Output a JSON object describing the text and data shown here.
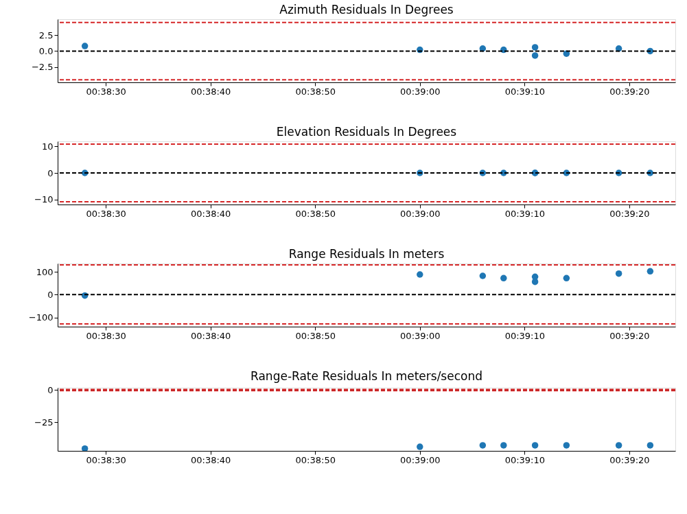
{
  "chart_data": [
    {
      "type": "scatter",
      "title": "Azimuth Residuals In Degrees",
      "x": [
        0.641111,
        0.65,
        0.651667,
        0.652222,
        0.653056,
        0.653056,
        0.653889,
        0.655278,
        0.656111
      ],
      "series": [
        {
          "color": "#1f77b4",
          "values": [
            0.8,
            0.2,
            0.4,
            0.2,
            0.6,
            -0.7,
            -0.4,
            0.4,
            0.0
          ]
        }
      ],
      "xlim": [
        0.640389,
        0.656778
      ],
      "xticks": [
        {
          "value": 0.641667,
          "label": "00:38:30"
        },
        {
          "value": 0.644444,
          "label": "00:38:40"
        },
        {
          "value": 0.647222,
          "label": "00:38:50"
        },
        {
          "value": 0.65,
          "label": "00:39:00"
        },
        {
          "value": 0.652778,
          "label": "00:39:10"
        },
        {
          "value": 0.655556,
          "label": "00:39:20"
        }
      ],
      "ylim": [
        -4.9,
        5.0
      ],
      "yticks": [
        {
          "value": 2.5,
          "label": "2.5"
        },
        {
          "value": 0,
          "label": "0.0"
        },
        {
          "value": -2.5,
          "label": "−2.5"
        }
      ],
      "ref_lines": [
        {
          "axis": "y",
          "value": 0,
          "color": "#000000",
          "line_style": "dashed"
        },
        {
          "axis": "y",
          "value": 4.5,
          "color": "#d62728",
          "line_style": "dashed"
        },
        {
          "axis": "y",
          "value": -4.5,
          "color": "#d62728",
          "line_style": "dashed"
        }
      ],
      "marker": "circle",
      "grid": false
    },
    {
      "type": "scatter",
      "title": "Elevation Residuals In Degrees",
      "x": [
        0.641111,
        0.65,
        0.651667,
        0.652222,
        0.653056,
        0.653056,
        0.653889,
        0.655278,
        0.656111
      ],
      "series": [
        {
          "color": "#1f77b4",
          "values": [
            0,
            0,
            0,
            0,
            0,
            0,
            0,
            0,
            0
          ]
        }
      ],
      "xlim": [
        0.640389,
        0.656778
      ],
      "xticks": [
        {
          "value": 0.641667,
          "label": "00:38:30"
        },
        {
          "value": 0.644444,
          "label": "00:38:40"
        },
        {
          "value": 0.647222,
          "label": "00:38:50"
        },
        {
          "value": 0.65,
          "label": "00:39:00"
        },
        {
          "value": 0.652778,
          "label": "00:39:10"
        },
        {
          "value": 0.655556,
          "label": "00:39:20"
        }
      ],
      "ylim": [
        -11.8,
        11.8
      ],
      "yticks": [
        {
          "value": 10,
          "label": "10"
        },
        {
          "value": 0,
          "label": "0"
        },
        {
          "value": -10,
          "label": "−10"
        }
      ],
      "ref_lines": [
        {
          "axis": "y",
          "value": 0,
          "color": "#000000",
          "line_style": "dashed"
        },
        {
          "axis": "y",
          "value": 10.8,
          "color": "#d62728",
          "line_style": "dashed"
        },
        {
          "axis": "y",
          "value": -10.8,
          "color": "#d62728",
          "line_style": "dashed"
        }
      ],
      "marker": "circle",
      "grid": false
    },
    {
      "type": "scatter",
      "title": "Range Residuals In meters",
      "x": [
        0.641111,
        0.65,
        0.651667,
        0.652222,
        0.653056,
        0.653056,
        0.653889,
        0.655278,
        0.656111
      ],
      "series": [
        {
          "color": "#1f77b4",
          "values": [
            -4,
            88,
            82,
            72,
            78,
            56,
            72,
            92,
            102
          ]
        }
      ],
      "xlim": [
        0.640389,
        0.656778
      ],
      "xticks": [
        {
          "value": 0.641667,
          "label": "00:38:30"
        },
        {
          "value": 0.644444,
          "label": "00:38:40"
        },
        {
          "value": 0.647222,
          "label": "00:38:50"
        },
        {
          "value": 0.65,
          "label": "00:39:00"
        },
        {
          "value": 0.652778,
          "label": "00:39:10"
        },
        {
          "value": 0.655556,
          "label": "00:39:20"
        }
      ],
      "ylim": [
        -140,
        136
      ],
      "yticks": [
        {
          "value": 100,
          "label": "100"
        },
        {
          "value": 0,
          "label": "0"
        },
        {
          "value": -100,
          "label": "−100"
        }
      ],
      "ref_lines": [
        {
          "axis": "y",
          "value": 0,
          "color": "#000000",
          "line_style": "dashed"
        },
        {
          "axis": "y",
          "value": 130,
          "color": "#d62728",
          "line_style": "dashed"
        },
        {
          "axis": "y",
          "value": -128,
          "color": "#d62728",
          "line_style": "dashed"
        }
      ],
      "marker": "circle",
      "grid": false
    },
    {
      "type": "scatter",
      "title": "Range-Rate Residuals In meters/second",
      "x": [
        0.641111,
        0.65,
        0.651667,
        0.652222,
        0.653056,
        0.653889,
        0.655278,
        0.656111
      ],
      "series": [
        {
          "color": "#1f77b4",
          "values": [
            -45.7,
            -44.3,
            -43.2,
            -43.2,
            -43.2,
            -43.2,
            -43.2,
            -43.2
          ]
        }
      ],
      "xlim": [
        0.640389,
        0.656778
      ],
      "xticks": [
        {
          "value": 0.641667,
          "label": "00:38:30"
        },
        {
          "value": 0.644444,
          "label": "00:38:40"
        },
        {
          "value": 0.647222,
          "label": "00:38:50"
        },
        {
          "value": 0.65,
          "label": "00:39:00"
        },
        {
          "value": 0.652778,
          "label": "00:39:10"
        },
        {
          "value": 0.655556,
          "label": "00:39:20"
        }
      ],
      "ylim": [
        -47.5,
        1.8
      ],
      "yticks": [
        {
          "value": 0,
          "label": "0"
        },
        {
          "value": -25,
          "label": "−25"
        }
      ],
      "ref_lines": [
        {
          "axis": "y",
          "value": 0,
          "color": "#000000",
          "line_style": "dashed"
        },
        {
          "axis": "y",
          "value": 0.5,
          "color": "#d62728",
          "line_style": "dashed"
        },
        {
          "axis": "y",
          "value": -0.5,
          "color": "#d62728",
          "line_style": "dashed"
        }
      ],
      "marker": "circle",
      "grid": false
    }
  ]
}
